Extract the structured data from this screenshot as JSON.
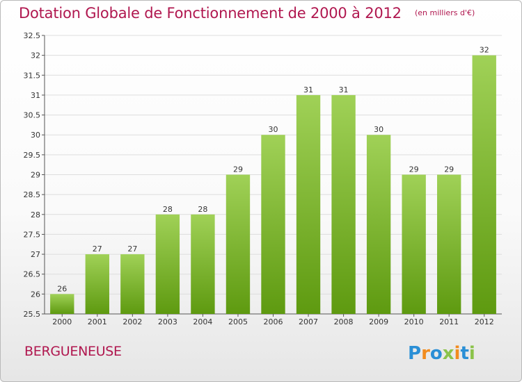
{
  "title": "Dotation Globale de Fonctionnement de 2000 à 2012",
  "unit_note": "(en milliers d'€)",
  "commune": "BERGUENEUSE",
  "logo_text": "Proxiti",
  "colors": {
    "title": "#b0174f",
    "bar_top": "#a0d157",
    "bar_bottom": "#5e9a10",
    "grid": "#dddddd"
  },
  "chart_data": {
    "type": "bar",
    "title": "Dotation Globale de Fonctionnement de 2000 à 2012",
    "subtitle": "(en milliers d'€)",
    "categories": [
      "2000",
      "2001",
      "2002",
      "2003",
      "2004",
      "2005",
      "2006",
      "2007",
      "2008",
      "2009",
      "2010",
      "2011",
      "2012"
    ],
    "values": [
      26,
      27,
      27,
      28,
      28,
      29,
      30,
      31,
      31,
      30,
      29,
      29,
      32
    ],
    "ylim": [
      25.5,
      32.5
    ],
    "yticks": [
      "25.5",
      "26",
      "26.5",
      "27",
      "27.5",
      "28",
      "28.5",
      "29",
      "29.5",
      "30",
      "30.5",
      "31",
      "31.5",
      "32",
      "32.5"
    ],
    "grid": true,
    "legend": "none"
  }
}
